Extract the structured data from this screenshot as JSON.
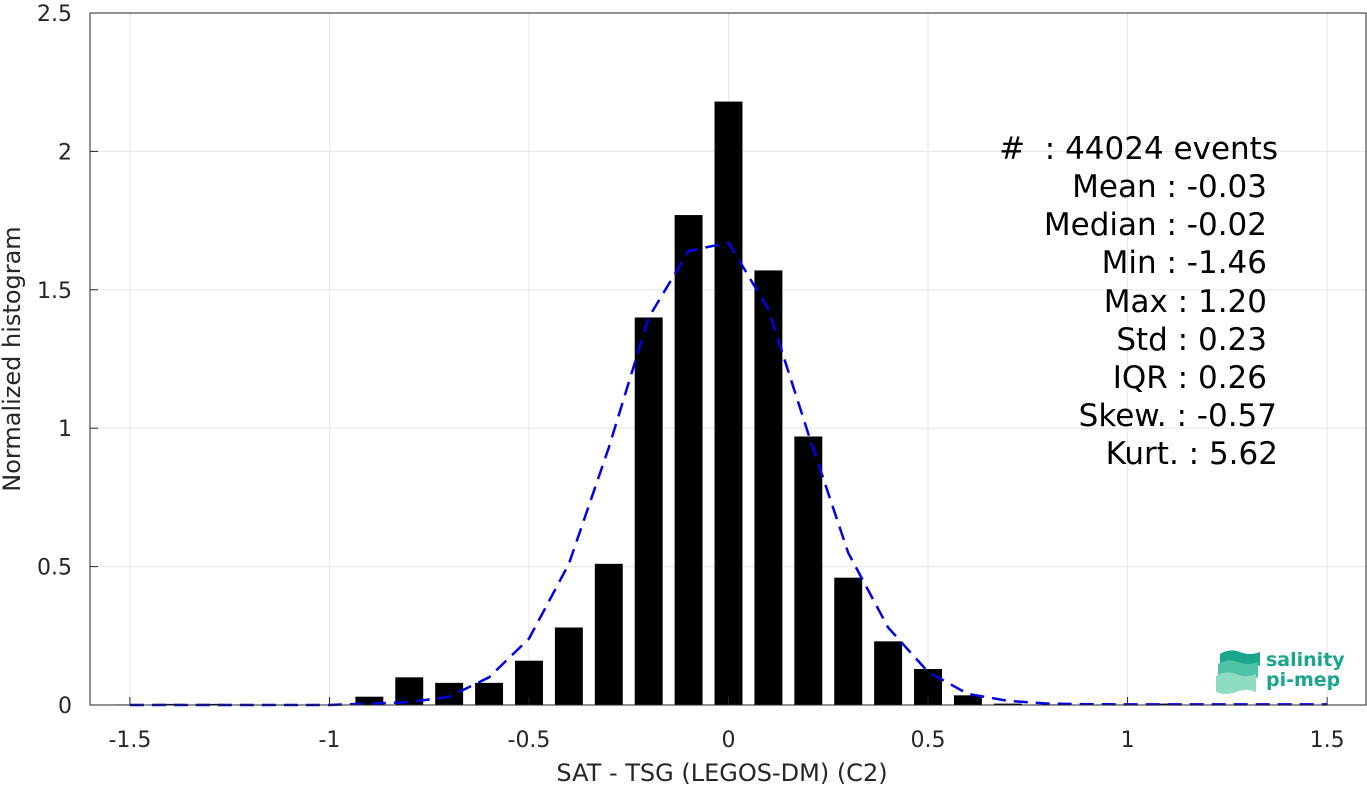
{
  "chart_data": {
    "type": "bar",
    "xlabel": "SAT - TSG (LEGOS-DM) (C2)",
    "ylabel": "Normalized histogram",
    "xlim": [
      -1.6,
      1.6
    ],
    "ylim": [
      0,
      2.5
    ],
    "xticks": [
      "-1.5",
      "-1",
      "-0.5",
      "0",
      "0.5",
      "1",
      "1.5"
    ],
    "xtick_values": [
      -1.5,
      -1,
      -0.5,
      0,
      0.5,
      1,
      1.5
    ],
    "yticks": [
      "0",
      "0.5",
      "1",
      "1.5",
      "2",
      "2.5"
    ],
    "ytick_values": [
      0,
      0.5,
      1,
      1.5,
      2,
      2.5
    ],
    "grid": true,
    "bin_width": 0.1,
    "bar_width": 0.07,
    "series": [
      {
        "kind": "bars",
        "color": "#000000",
        "x": [
          -1.5,
          -1.4,
          -1.3,
          -1.2,
          -1.1,
          -1.0,
          -0.9,
          -0.8,
          -0.7,
          -0.6,
          -0.5,
          -0.4,
          -0.3,
          -0.2,
          -0.1,
          0.0,
          0.1,
          0.2,
          0.3,
          0.4,
          0.5,
          0.6,
          0.7,
          0.8,
          0.9,
          1.0,
          1.1,
          1.2
        ],
        "values": [
          0.002,
          0.004,
          0.004,
          0.0,
          0.0,
          0.0,
          0.03,
          0.1,
          0.08,
          0.08,
          0.16,
          0.28,
          0.51,
          1.4,
          1.77,
          2.18,
          1.57,
          0.97,
          0.46,
          0.23,
          0.13,
          0.035,
          0.005,
          0.002,
          0.0,
          0.0,
          0.005,
          0.0
        ]
      },
      {
        "kind": "line",
        "style": "dashed",
        "color": "#0000e6",
        "x": [
          -1.5,
          -1.4,
          -1.3,
          -1.2,
          -1.1,
          -1.0,
          -0.9,
          -0.8,
          -0.7,
          -0.6,
          -0.5,
          -0.4,
          -0.3,
          -0.2,
          -0.1,
          0.0,
          0.1,
          0.2,
          0.3,
          0.4,
          0.5,
          0.6,
          0.7,
          0.8,
          0.9,
          1.0,
          1.1,
          1.2,
          1.3,
          1.4,
          1.5
        ],
        "values": [
          0.0,
          0.0,
          0.0,
          0.0,
          0.0,
          0.0,
          0.005,
          0.01,
          0.03,
          0.1,
          0.24,
          0.51,
          0.93,
          1.4,
          1.64,
          1.67,
          1.43,
          0.98,
          0.55,
          0.28,
          0.12,
          0.04,
          0.015,
          0.005,
          0.003,
          0.002,
          0.002,
          0.002,
          0.002,
          0.002,
          0.002
        ]
      }
    ]
  },
  "stats": [
    {
      "text": "#  : 44024 events",
      "align_right": 1278
    },
    {
      "text": "Mean : -0.03",
      "align_right": 1267
    },
    {
      "text": "Median : -0.02",
      "align_right": 1267
    },
    {
      "text": "Min : -1.46",
      "align_right": 1267
    },
    {
      "text": "Max : 1.20",
      "align_right": 1267
    },
    {
      "text": "Std : 0.23",
      "align_right": 1267
    },
    {
      "text": "IQR : 0.26",
      "align_right": 1267
    },
    {
      "text": "Skew. : -0.57",
      "align_right": 1277
    },
    {
      "text": "Kurt. : 5.62",
      "align_right": 1278
    }
  ],
  "logo": {
    "line1": "salinity",
    "line2": "pi-mep",
    "color": "#1aa58c"
  }
}
